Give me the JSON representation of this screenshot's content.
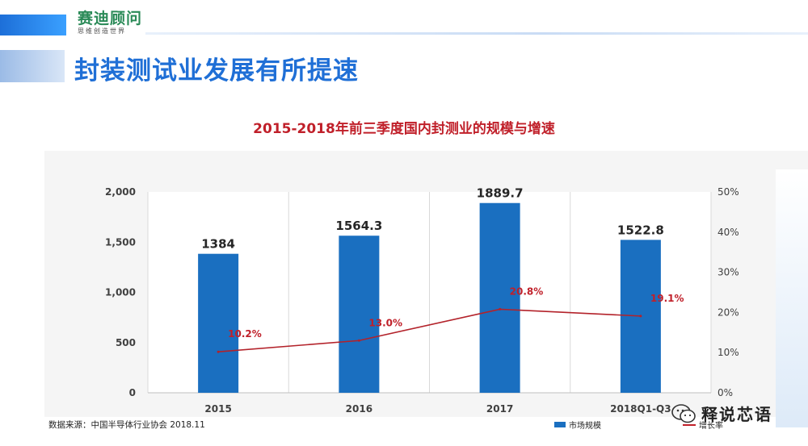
{
  "header": {
    "logo_main": "赛迪顾问",
    "logo_sub": "思维创造世界",
    "title": "封装测试业发展有所提速"
  },
  "footer": {
    "source": "数据来源：中国半导体行业协会 2018.11",
    "watermark": "释说芯语"
  },
  "colors": {
    "bar": "#1a6fc0",
    "line": "#b3222a",
    "label_red": "#c0202a",
    "title_blue": "#1f6fd6"
  },
  "chart_data": {
    "type": "bar",
    "title": "2015-2018年前三季度国内封测业的规模与增速",
    "categories": [
      "2015",
      "2016",
      "2017",
      "2018Q1-Q3"
    ],
    "series": [
      {
        "name": "市场规模",
        "type": "bar",
        "axis": "left",
        "values": [
          1384,
          1564.3,
          1889.7,
          1522.8
        ],
        "labels": [
          "1384",
          "1564.3",
          "1889.7",
          "1522.8"
        ]
      },
      {
        "name": "增长率",
        "type": "line",
        "axis": "right",
        "values": [
          10.2,
          13.0,
          20.8,
          19.1
        ],
        "labels": [
          "10.2%",
          "13.0%",
          "20.8%",
          "19.1%"
        ]
      }
    ],
    "y_left": {
      "min": 0,
      "max": 2000,
      "ticks": [
        "0",
        "500",
        "1,000",
        "1,500",
        "2,000"
      ]
    },
    "y_right": {
      "min": 0,
      "max": 50,
      "ticks": [
        "0%",
        "10%",
        "20%",
        "30%",
        "40%",
        "50%"
      ]
    },
    "grid": "vertical",
    "legend_position": "bottom-right"
  }
}
